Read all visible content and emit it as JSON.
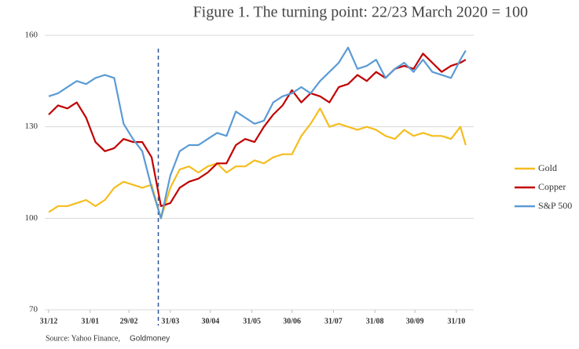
{
  "chart_data": {
    "type": "line",
    "title": "Figure 1. The turning point: 22/23 March 2020 = 100",
    "source": "Source: Yahoo Finance,",
    "source_brand": "Goldmoney",
    "x": [
      0,
      7,
      14,
      21,
      28,
      35,
      42,
      49,
      56,
      63,
      70,
      77,
      84,
      91,
      98,
      105,
      112,
      119,
      126,
      133,
      140,
      147,
      154,
      161,
      168,
      175,
      182,
      189,
      196,
      203,
      210,
      217,
      224,
      231,
      238,
      245,
      252,
      259,
      266,
      273,
      280,
      287,
      294,
      301,
      308,
      312
    ],
    "xlim": [
      0,
      318
    ],
    "xticks": [
      {
        "value": 0,
        "label": "31/12"
      },
      {
        "value": 31,
        "label": "31/01"
      },
      {
        "value": 60,
        "label": "29/02"
      },
      {
        "value": 91,
        "label": "31/03"
      },
      {
        "value": 121,
        "label": "30/04"
      },
      {
        "value": 152,
        "label": "31/05"
      },
      {
        "value": 182,
        "label": "30/06"
      },
      {
        "value": 213,
        "label": "31/07"
      },
      {
        "value": 244,
        "label": "31/08"
      },
      {
        "value": 274,
        "label": "30/09"
      },
      {
        "value": 305,
        "label": "31/10"
      }
    ],
    "ylim": [
      70,
      160
    ],
    "yticks": [
      70,
      100,
      130,
      160
    ],
    "grid": true,
    "vline": 82,
    "legend": "right",
    "series": [
      {
        "name": "Gold",
        "color": "#f5bd1f",
        "values": [
          102,
          104,
          104,
          105,
          106,
          104,
          106,
          110,
          112,
          111,
          110,
          111,
          100,
          110,
          116,
          117,
          115,
          117,
          118,
          115,
          117,
          117,
          119,
          118,
          120,
          121,
          121,
          127,
          131,
          136,
          130,
          131,
          130,
          129,
          130,
          129,
          127,
          126,
          129,
          127,
          128,
          127,
          127,
          126,
          130,
          124
        ]
      },
      {
        "name": "Copper",
        "color": "#c00000",
        "values": [
          134,
          137,
          136,
          138,
          133,
          125,
          122,
          123,
          126,
          125,
          125,
          120,
          104,
          105,
          110,
          112,
          113,
          115,
          118,
          118,
          124,
          126,
          125,
          130,
          134,
          137,
          142,
          138,
          141,
          140,
          138,
          143,
          144,
          147,
          145,
          148,
          146,
          149,
          150,
          149,
          154,
          151,
          148,
          150,
          151,
          152
        ]
      },
      {
        "name": "S&P 500",
        "color": "#5b9bd5",
        "values": [
          140,
          141,
          143,
          145,
          144,
          146,
          147,
          146,
          131,
          126,
          122,
          110,
          100,
          114,
          122,
          124,
          124,
          126,
          128,
          127,
          135,
          133,
          131,
          132,
          138,
          140,
          141,
          143,
          141,
          145,
          148,
          151,
          156,
          149,
          150,
          152,
          146,
          149,
          151,
          148,
          152,
          148,
          147,
          146,
          152,
          155
        ]
      }
    ]
  }
}
